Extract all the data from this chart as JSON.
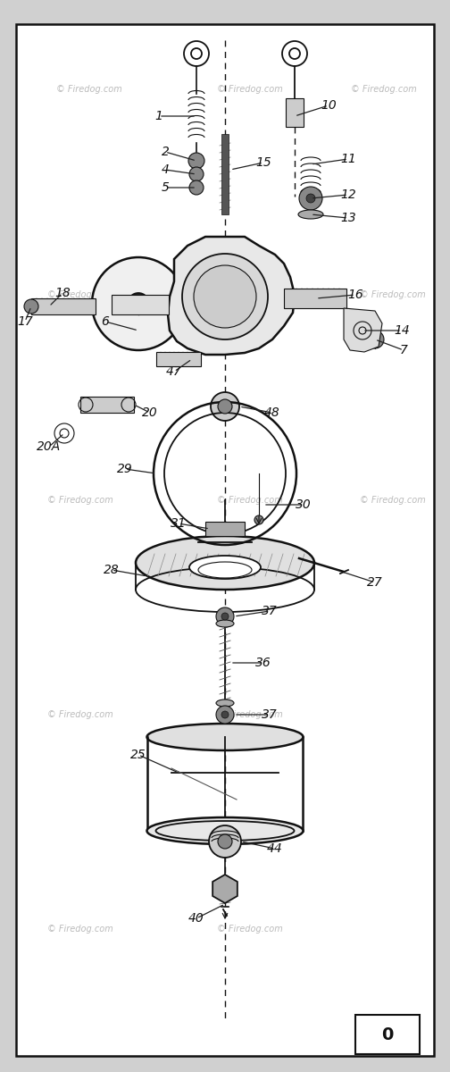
{
  "bg_color": "#ffffff",
  "outer_bg": "#d0d0d0",
  "border_color": "#111111",
  "line_color": "#111111",
  "watermark": "© Firedog.com",
  "page_num": "0",
  "figsize": [
    5.04,
    12.0
  ],
  "dpi": 100
}
